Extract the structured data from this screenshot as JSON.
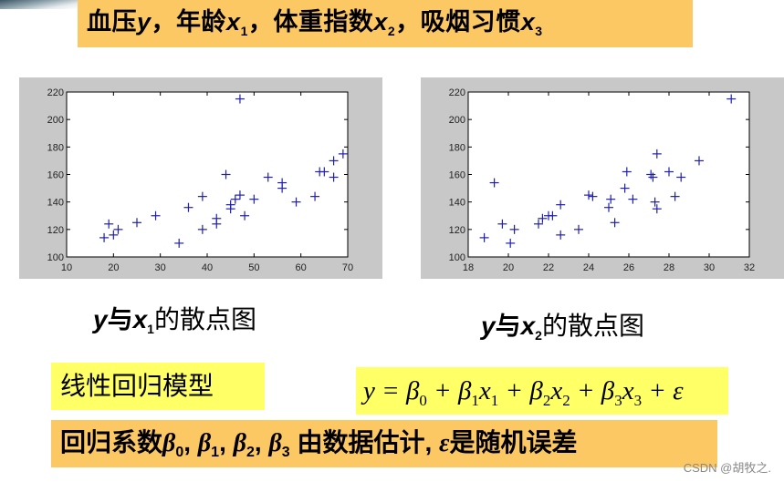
{
  "title": {
    "parts": [
      "血压",
      "y",
      "，年龄",
      "x",
      "1",
      "，体重指数",
      "x",
      "2",
      "，吸烟习惯",
      "x",
      "3"
    ]
  },
  "captions": {
    "left": {
      "y": "y",
      "mid": "与",
      "x": "x",
      "sub": "1",
      "rest": "的散点图"
    },
    "right": {
      "y": "y",
      "mid": "与",
      "x": "x",
      "sub": "2",
      "rest": "的散点图"
    }
  },
  "model": {
    "label": "线性回归模型",
    "formula": {
      "lhs": "y = ",
      "terms": [
        "β",
        "0",
        " + β",
        "1",
        "x",
        "1",
        " + β",
        "2",
        "x",
        "2",
        " + β",
        "3",
        "x",
        "3",
        " + ε"
      ]
    }
  },
  "coefficients_note": {
    "prefix": "回归系数",
    "b0": "β",
    "s0": "0",
    "sep1": ", ",
    "b1": "β",
    "s1": "1",
    "sep2": ", ",
    "b2": "β",
    "s2": "2",
    "sep3": ", ",
    "b3": "β",
    "s3": "3",
    "middle": " 由数据估计, ",
    "eps": "ε",
    "suffix": "是随机误差"
  },
  "watermark": "CSDN @胡牧之.",
  "colors": {
    "banner_orange": "#fcc864",
    "highlight_yellow": "#ffff66",
    "marker_blue": "#2020b0",
    "frame_gray": "#c8c8c8"
  },
  "chart_data": [
    {
      "type": "scatter",
      "title": "y与x1的散点图",
      "xlabel": "",
      "ylabel": "",
      "xlim": [
        10,
        70
      ],
      "ylim": [
        100,
        220
      ],
      "xticks": [
        10,
        20,
        30,
        40,
        50,
        60,
        70
      ],
      "yticks": [
        100,
        120,
        140,
        160,
        180,
        200,
        220
      ],
      "marker": "+",
      "grid": false,
      "x": [
        18,
        19,
        20,
        21,
        25,
        29,
        34,
        36,
        39,
        39,
        42,
        42,
        44,
        45,
        45,
        46,
        47,
        47,
        48,
        50,
        53,
        56,
        56,
        59,
        63,
        64,
        65,
        67,
        67,
        69
      ],
      "y": [
        114,
        124,
        116,
        120,
        125,
        130,
        110,
        136,
        144,
        120,
        124,
        128,
        160,
        138,
        135,
        142,
        145,
        215,
        130,
        142,
        158,
        154,
        150,
        140,
        144,
        162,
        162,
        170,
        158,
        175
      ]
    },
    {
      "type": "scatter",
      "title": "y与x2的散点图",
      "xlabel": "",
      "ylabel": "",
      "xlim": [
        18,
        32
      ],
      "ylim": [
        100,
        220
      ],
      "xticks": [
        18,
        20,
        22,
        24,
        26,
        28,
        30,
        32
      ],
      "yticks": [
        100,
        120,
        140,
        160,
        180,
        200,
        220
      ],
      "marker": "+",
      "grid": false,
      "x": [
        18.8,
        19.3,
        19.7,
        20.1,
        20.3,
        21.5,
        21.7,
        22.0,
        22.2,
        22.6,
        22.6,
        23.5,
        24.0,
        24.2,
        25.0,
        25.1,
        25.3,
        25.8,
        25.9,
        26.2,
        27.1,
        27.2,
        27.3,
        27.4,
        27.4,
        28.0,
        28.3,
        28.6,
        29.5,
        31.1
      ],
      "y": [
        114,
        154,
        124,
        110,
        120,
        124,
        128,
        130,
        130,
        138,
        116,
        120,
        145,
        144,
        136,
        142,
        125,
        150,
        162,
        142,
        160,
        158,
        140,
        175,
        135,
        162,
        144,
        158,
        170,
        215
      ]
    }
  ]
}
